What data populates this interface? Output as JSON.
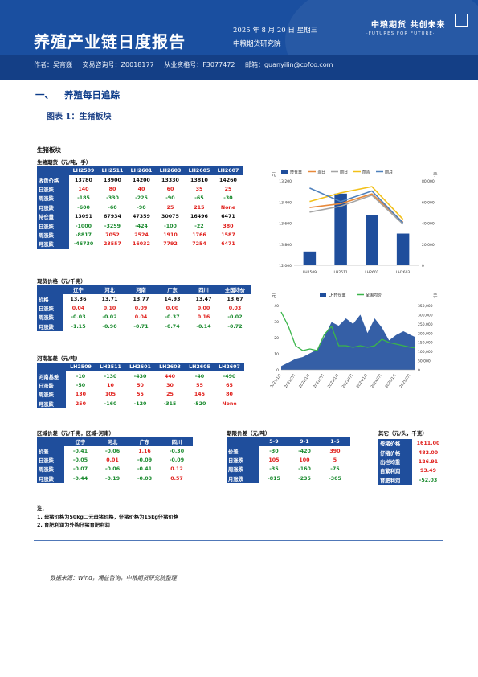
{
  "header": {
    "title": "养殖产业链日度报告",
    "date": "2025 年 8 月 20 日 星期三",
    "institute": "中粮期货研究院",
    "logo_text": "中粮期货 共创未来",
    "slogan": "·FUTURES FOR FUTURE·",
    "author": "作者：吴宵巍",
    "consult_no": "交易咨询号：Z0018177",
    "practice_no": "从业资格号：F3077472",
    "email": "邮箱：guanyilin@cofco.com",
    "colors": {
      "header_bg": "#1a4fa0",
      "table_header": "#1f4e9c",
      "up": "#e0201c",
      "down": "#1a8a2e"
    }
  },
  "section": {
    "num": "一、",
    "title": "养殖每日追踪"
  },
  "figure_title": "图表 1：生猪板块",
  "panel_title": "生猪板块",
  "futures": {
    "label": "生猪期货（元/吨，手）",
    "columns": [
      "LH2509",
      "LH2511",
      "LH2601",
      "LH2603",
      "LH2605",
      "LH2607"
    ],
    "rows": [
      {
        "name": "收盘价格",
        "values": [
          "13780",
          "13900",
          "14200",
          "13330",
          "13810",
          "14260"
        ],
        "color": ""
      },
      {
        "name": "日涨跌",
        "values": [
          "140",
          "80",
          "40",
          "60",
          "35",
          "25"
        ],
        "color": "red"
      },
      {
        "name": "周涨跌",
        "values": [
          "-185",
          "-330",
          "-225",
          "-90",
          "-65",
          "-30"
        ],
        "color": "green"
      },
      {
        "name": "月涨跌",
        "values": [
          "-600",
          "-60",
          "-90",
          "25",
          "215",
          "None"
        ],
        "color": "mixed"
      },
      {
        "name": "持仓量",
        "values": [
          "13091",
          "67934",
          "47359",
          "30075",
          "16496",
          "6471"
        ],
        "color": ""
      },
      {
        "name": "日涨跌",
        "values": [
          "-1000",
          "-3259",
          "-424",
          "-100",
          "-22",
          "380"
        ],
        "color": "mixed"
      },
      {
        "name": "周涨跌",
        "values": [
          "-8817",
          "7052",
          "2524",
          "1910",
          "1766",
          "1587"
        ],
        "color": "mixed"
      },
      {
        "name": "月涨跌",
        "values": [
          "-46730",
          "23557",
          "16032",
          "7792",
          "7254",
          "6471"
        ],
        "color": "mixed"
      }
    ]
  },
  "spot": {
    "label": "现货价格（元/千克）",
    "columns": [
      "辽宁",
      "河北",
      "河南",
      "广东",
      "四川",
      "全国均价"
    ],
    "rows": [
      {
        "name": "价格",
        "values": [
          "13.36",
          "13.71",
          "13.77",
          "14.93",
          "13.47",
          "13.67"
        ]
      },
      {
        "name": "日涨跌",
        "values": [
          "0.04",
          "0.10",
          "0.09",
          "0.00",
          "0.00",
          "0.03"
        ]
      },
      {
        "name": "周涨跌",
        "values": [
          "-0.03",
          "-0.02",
          "0.04",
          "-0.37",
          "0.16",
          "-0.02"
        ]
      },
      {
        "name": "月涨跌",
        "values": [
          "-1.15",
          "-0.90",
          "-0.71",
          "-0.74",
          "-0.14",
          "-0.72"
        ]
      }
    ]
  },
  "basis": {
    "label": "河南基差（元/吨）",
    "columns": [
      "LH2509",
      "LH2511",
      "LH2601",
      "LH2603",
      "LH2605",
      "LH2607"
    ],
    "rows": [
      {
        "name": "河南基差",
        "values": [
          "-10",
          "-130",
          "-430",
          "440",
          "-40",
          "-490"
        ]
      },
      {
        "name": "日涨跌",
        "values": [
          "-50",
          "10",
          "50",
          "30",
          "55",
          "65"
        ]
      },
      {
        "name": "周涨跌",
        "values": [
          "130",
          "105",
          "55",
          "25",
          "145",
          "80"
        ]
      },
      {
        "name": "月涨跌",
        "values": [
          "250",
          "-160",
          "-120",
          "-315",
          "-520",
          "None"
        ]
      }
    ]
  },
  "regional": {
    "label": "区域价差（元/千克，区域-河南）",
    "columns": [
      "辽宁",
      "河北",
      "广东",
      "四川"
    ],
    "rows": [
      {
        "name": "价差",
        "values": [
          "-0.41",
          "-0.06",
          "1.16",
          "-0.30"
        ]
      },
      {
        "name": "日涨跌",
        "values": [
          "-0.05",
          "0.01",
          "-0.09",
          "-0.09"
        ]
      },
      {
        "name": "周涨跌",
        "values": [
          "-0.07",
          "-0.06",
          "-0.41",
          "0.12"
        ]
      },
      {
        "name": "月涨跌",
        "values": [
          "-0.44",
          "-0.19",
          "-0.03",
          "0.57"
        ]
      }
    ]
  },
  "calendar": {
    "label": "期限价差（元/吨）",
    "columns": [
      "5-9",
      "9-1",
      "1-5"
    ],
    "rows": [
      {
        "name": "价差",
        "values": [
          "-30",
          "-420",
          "390"
        ]
      },
      {
        "name": "日涨跌",
        "values": [
          "105",
          "100",
          "5"
        ]
      },
      {
        "name": "周涨跌",
        "values": [
          "-35",
          "-160",
          "-75"
        ]
      },
      {
        "name": "月涨跌",
        "values": [
          "-815",
          "-235",
          "-305"
        ]
      }
    ]
  },
  "other": {
    "label": "其它（元/头，千克）",
    "rows": [
      {
        "name": "母猪价格",
        "value": "1611.00"
      },
      {
        "name": "仔猪价格",
        "value": "482.00"
      },
      {
        "name": "出栏均重",
        "value": "126.91"
      },
      {
        "name": "自繁利润",
        "value": "93.49"
      },
      {
        "name": "育肥利润",
        "value": "-52.03"
      }
    ]
  },
  "notes": {
    "title": "注：",
    "items": [
      "1. 母猪价格为50kg二元母猪价格，仔猪价格为15kg仔猪价格",
      "2. 育肥利润为外购仔猪育肥利润"
    ]
  },
  "source": "数据来源：Wind，涌益咨询，中粮期货研究院整理",
  "chart_data": [
    {
      "type": "bar",
      "categories": [
        "LH2509",
        "LH2511",
        "LH2601",
        "LH2603"
      ],
      "legend": [
        "持仓量",
        "当日",
        "前日",
        "前周",
        "前月"
      ],
      "series": [
        {
          "name": "持仓量",
          "kind": "bar",
          "axis": "right",
          "values": [
            13091,
            67934,
            47359,
            30075
          ],
          "color": "#1f4e9c"
        },
        {
          "name": "当日",
          "kind": "line",
          "axis": "left",
          "values": [
            13780,
            13900,
            14200,
            13330
          ],
          "color": "#e8893a"
        },
        {
          "name": "前日",
          "kind": "line",
          "axis": "left",
          "values": [
            13640,
            13820,
            14160,
            13270
          ],
          "color": "#a5a5a5"
        },
        {
          "name": "前周",
          "kind": "line",
          "axis": "left",
          "values": [
            13965,
            14230,
            14425,
            13420
          ],
          "color": "#f2c018"
        },
        {
          "name": "前月",
          "kind": "line",
          "axis": "left",
          "values": [
            14380,
            13960,
            14290,
            13305
          ],
          "color": "#4f81bd"
        }
      ],
      "y_left_ticks": [
        "13,200",
        "13,400",
        "13,600",
        "13,800",
        "12,000"
      ],
      "y_right_ticks": [
        "80,000",
        "60,000",
        "40,000",
        "20,000",
        "0"
      ],
      "ylim_left": [
        12000,
        14600
      ],
      "ylim_right": [
        0,
        80000
      ],
      "ylabel_left": "元",
      "ylabel_right": "手",
      "legend_position": "top"
    },
    {
      "type": "area",
      "legend": [
        "LH持仓量",
        "全国均价"
      ],
      "x_ticks": [
        "2021/1/1",
        "2021/7/1",
        "2022/1/1",
        "2022/7/1",
        "2023/1/1",
        "2023/7/1",
        "2024/1/1",
        "2024/7/1",
        "2025/1/1",
        "2025/7/1"
      ],
      "y_left_ticks": [
        "40",
        "30",
        "20",
        "10",
        "0"
      ],
      "y_right_ticks": [
        "350,000",
        "300,000",
        "250,000",
        "200,000",
        "150,000",
        "100,000",
        "50,000",
        "0"
      ],
      "ylim_left": [
        0,
        40
      ],
      "ylim_right": [
        0,
        350000
      ],
      "ylabel_left": "元",
      "ylabel_right": "手",
      "series": [
        {
          "name": "LH持仓量",
          "kind": "area",
          "axis": "right",
          "color": "#1f4e9c",
          "x": [
            "2021/1/1",
            "2021/4/1",
            "2021/7/1",
            "2021/10/1",
            "2022/1/1",
            "2022/4/1",
            "2022/7/1",
            "2022/10/1",
            "2023/1/1",
            "2023/4/1",
            "2023/7/1",
            "2023/10/1",
            "2024/1/1",
            "2024/4/1",
            "2024/7/1",
            "2024/10/1",
            "2025/1/1",
            "2025/4/1",
            "2025/7/1",
            "2025/8/20"
          ],
          "values": [
            20000,
            40000,
            60000,
            70000,
            90000,
            110000,
            180000,
            260000,
            240000,
            280000,
            250000,
            300000,
            200000,
            280000,
            230000,
            160000,
            190000,
            210000,
            190000,
            180000
          ]
        },
        {
          "name": "全国均价",
          "kind": "line",
          "axis": "left",
          "color": "#3ab54a",
          "x": [
            "2021/1/1",
            "2021/4/1",
            "2021/7/1",
            "2021/10/1",
            "2022/1/1",
            "2022/4/1",
            "2022/7/1",
            "2022/10/1",
            "2023/1/1",
            "2023/4/1",
            "2023/7/1",
            "2023/10/1",
            "2024/1/1",
            "2024/4/1",
            "2024/7/1",
            "2024/10/1",
            "2025/1/1",
            "2025/4/1",
            "2025/7/1",
            "2025/8/20"
          ],
          "values": [
            36,
            27,
            15,
            12,
            13,
            12,
            22,
            27,
            15,
            15,
            14,
            15,
            14,
            15,
            19,
            17,
            16,
            15,
            14,
            13.7
          ]
        }
      ],
      "legend_position": "top"
    }
  ]
}
